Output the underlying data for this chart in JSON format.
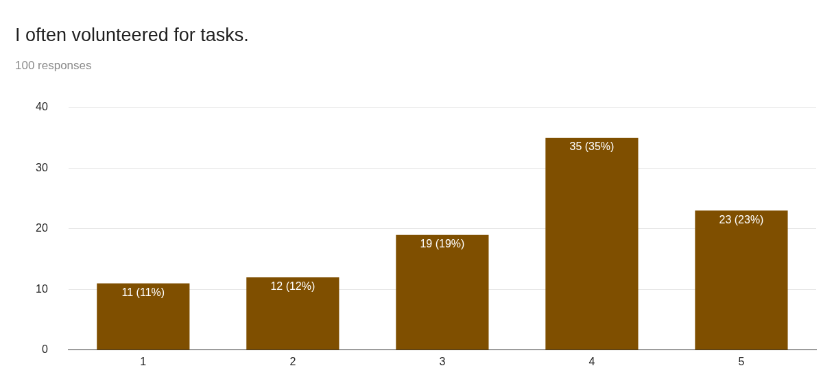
{
  "chart_data": {
    "type": "bar",
    "title": "I often volunteered for tasks.",
    "subtitle": "100 responses",
    "categories": [
      "1",
      "2",
      "3",
      "4",
      "5"
    ],
    "values": [
      11,
      12,
      19,
      35,
      23
    ],
    "value_labels": [
      "11 (11%)",
      "12 (12%)",
      "19 (19%)",
      "35 (35%)",
      "23 (23%)"
    ],
    "color": "#7f4f00",
    "ylim": [
      0,
      40
    ],
    "yticks": [
      0,
      10,
      20,
      30,
      40
    ],
    "grid": "y",
    "legend": false
  }
}
